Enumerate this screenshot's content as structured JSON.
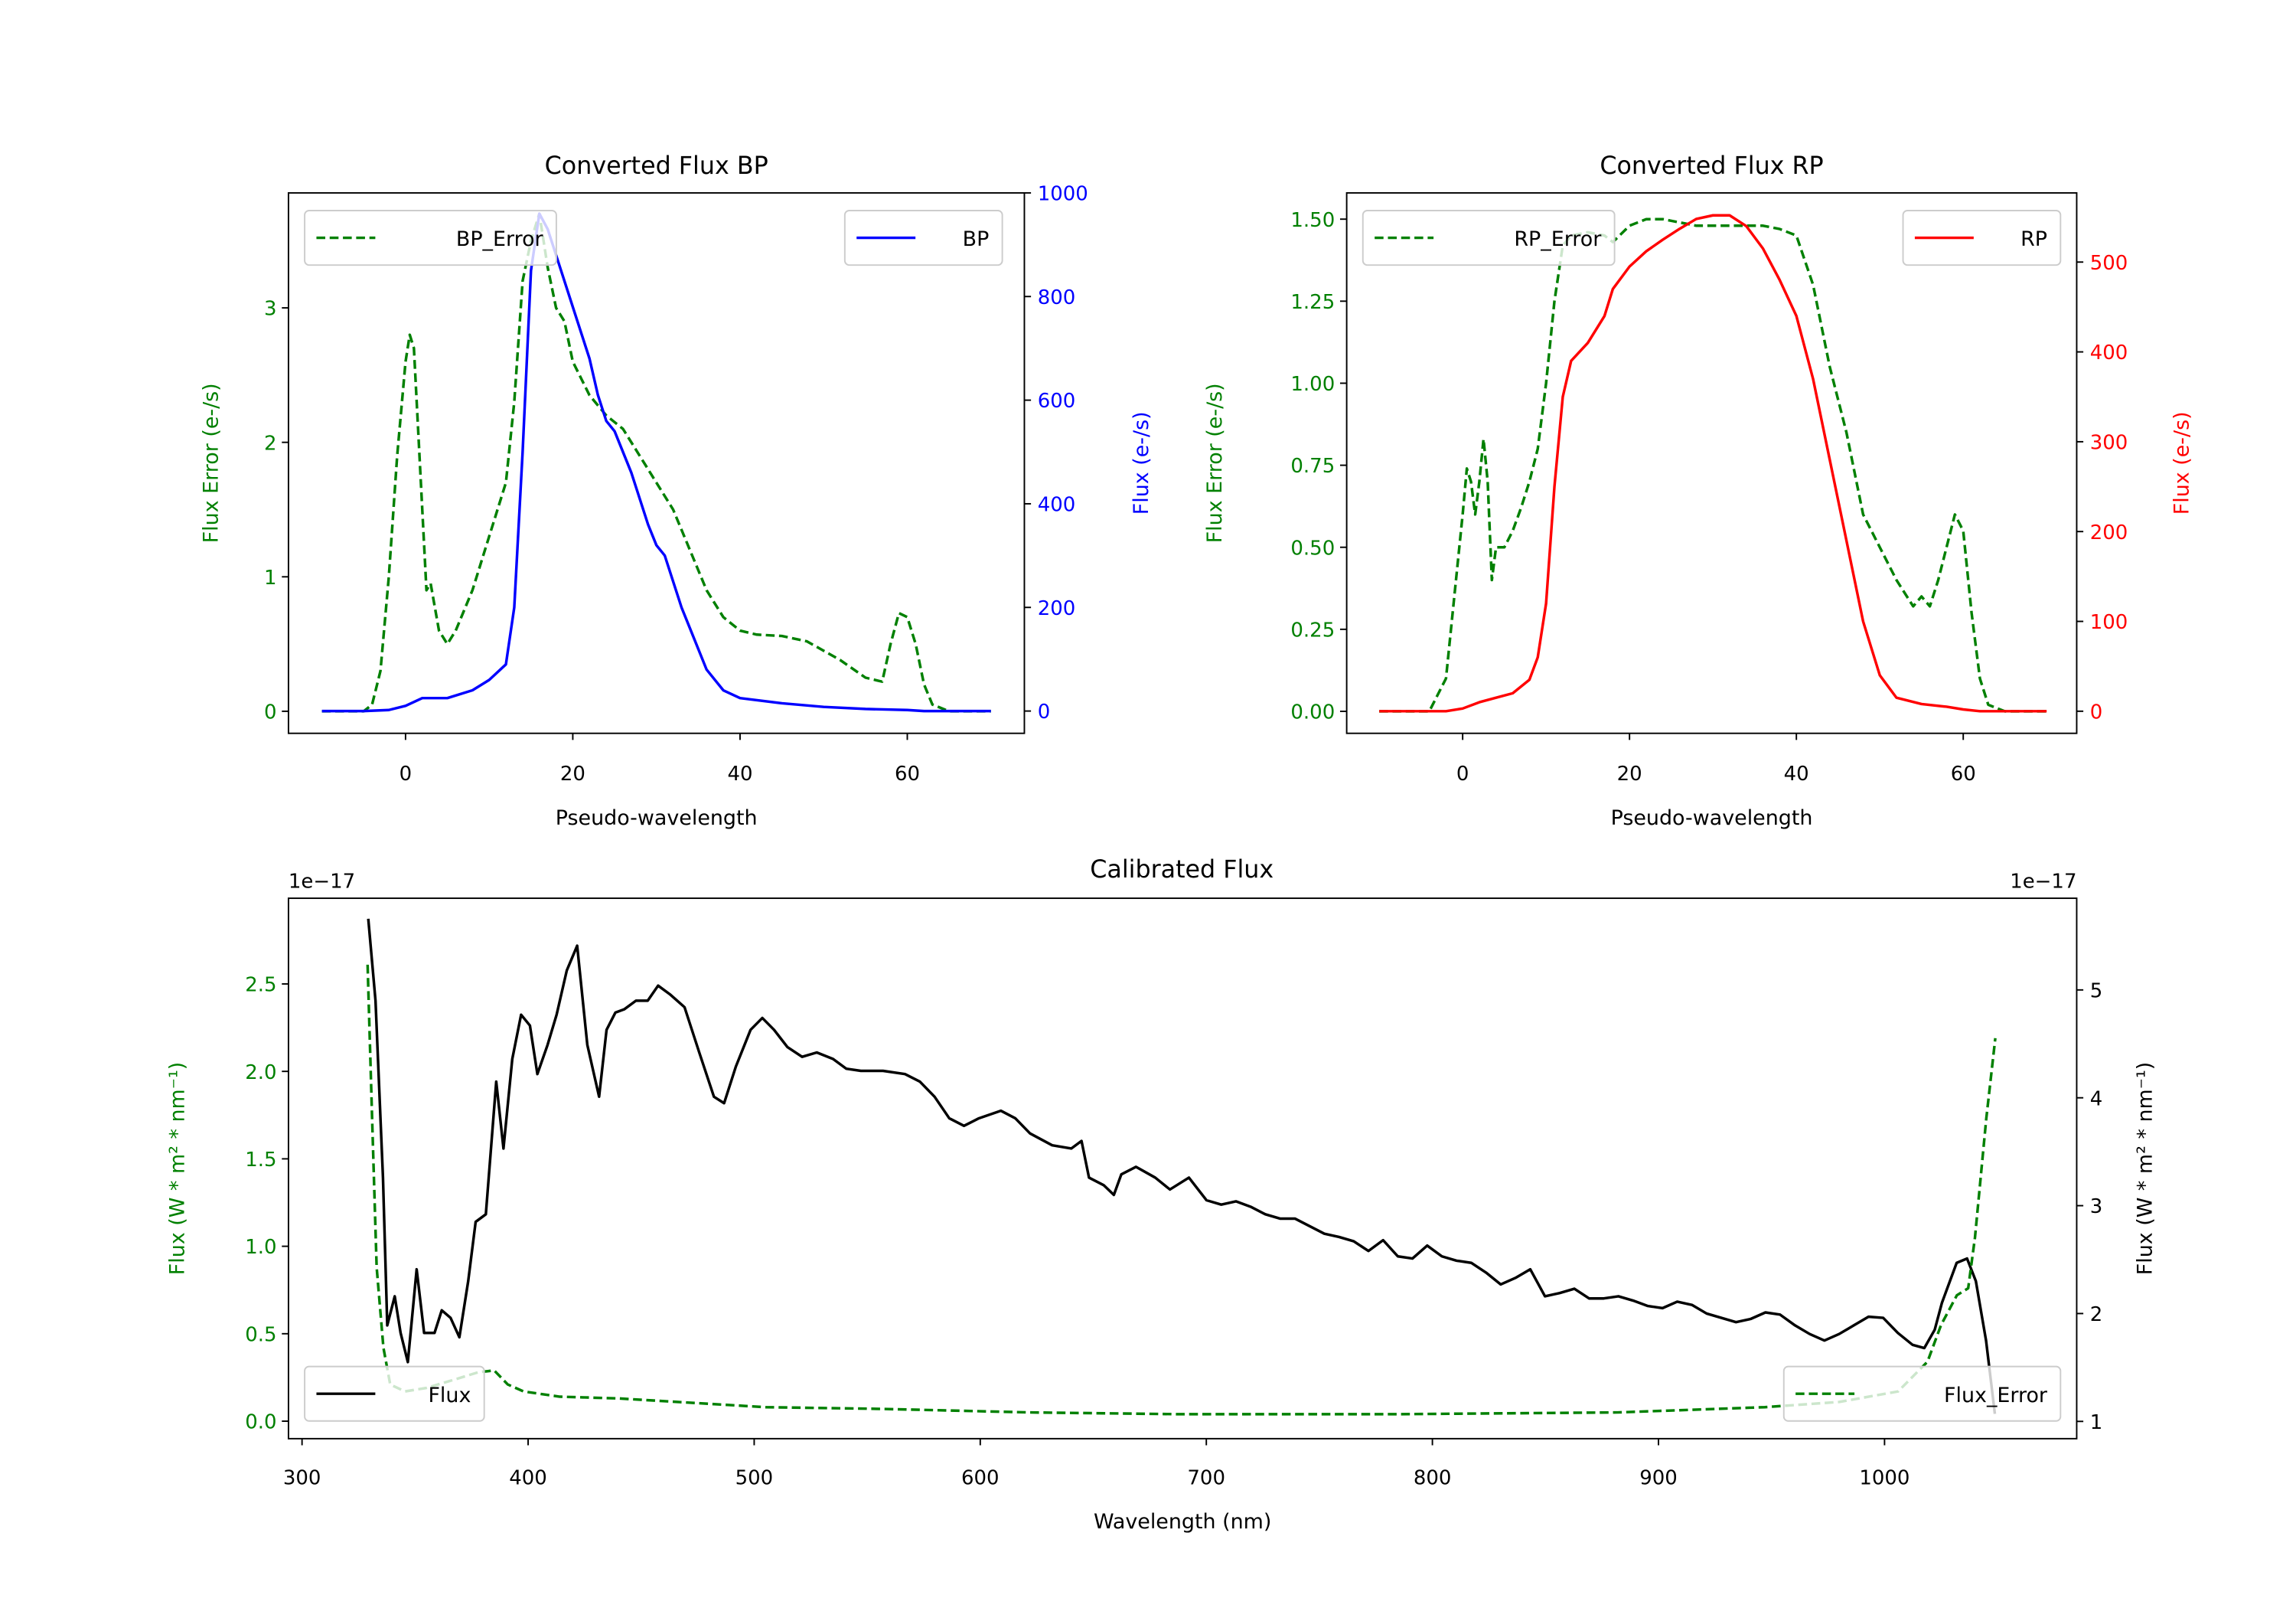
{
  "chart_data": [
    {
      "type": "line",
      "title": "Converted Flux BP",
      "xlabel": "Pseudo-wavelength",
      "ylabel_left": "Flux Error (e-/s)",
      "ylabel_right": "Flux (e-/s)",
      "xlim": [
        -14,
        74
      ],
      "ylim_left": [
        -0.164,
        3.855
      ],
      "ylim_right": [
        -43,
        1000
      ],
      "xticks": [
        0,
        20,
        40,
        60
      ],
      "xtick_labels": [
        "0",
        "20",
        "40",
        "60"
      ],
      "yticks_left": [
        0,
        1,
        2,
        3
      ],
      "ytick_labels_left": [
        "0",
        "1",
        "2",
        "3"
      ],
      "yticks_right": [
        0,
        200,
        400,
        600,
        800,
        1000
      ],
      "ytick_labels_right": [
        "0",
        "200",
        "400",
        "600",
        "800",
        "1000"
      ],
      "left_color": "#008000",
      "right_color": "#0000ff",
      "series": [
        {
          "name": "BP_Error",
          "axis": "left",
          "style": "dashed",
          "color": "#008000",
          "legend": "upper-left",
          "x": [
            -10,
            -5,
            -4,
            -3,
            -2,
            -1,
            0,
            0.5,
            1,
            2,
            2.5,
            3,
            4,
            5,
            6,
            8,
            10,
            12,
            13,
            14,
            15,
            16,
            17,
            18,
            19,
            20,
            22,
            24,
            26,
            28,
            30,
            32,
            34,
            36,
            38,
            40,
            42,
            45,
            48,
            50,
            52,
            55,
            57,
            58,
            59,
            60,
            61,
            62,
            63,
            65,
            70
          ],
          "y": [
            0,
            0,
            0.05,
            0.3,
            1.0,
            1.9,
            2.6,
            2.8,
            2.7,
            1.5,
            0.9,
            0.95,
            0.6,
            0.5,
            0.6,
            0.9,
            1.3,
            1.7,
            2.3,
            3.2,
            3.5,
            3.7,
            3.3,
            3.0,
            2.9,
            2.6,
            2.35,
            2.2,
            2.1,
            1.9,
            1.7,
            1.5,
            1.2,
            0.9,
            0.7,
            0.6,
            0.57,
            0.56,
            0.52,
            0.45,
            0.38,
            0.25,
            0.22,
            0.5,
            0.73,
            0.7,
            0.5,
            0.2,
            0.05,
            0,
            0
          ]
        },
        {
          "name": "BP",
          "axis": "right",
          "style": "solid",
          "color": "#0000ff",
          "legend": "upper-right",
          "x": [
            -10,
            -5,
            -2,
            0,
            2,
            5,
            8,
            10,
            12,
            13,
            14,
            15,
            16,
            17,
            18,
            20,
            22,
            23,
            24,
            25,
            27,
            29,
            30,
            31,
            33,
            34,
            36,
            38,
            40,
            45,
            50,
            55,
            60,
            62,
            70
          ],
          "y": [
            0,
            0,
            2,
            10,
            25,
            25,
            40,
            60,
            90,
            200,
            500,
            850,
            960,
            930,
            880,
            780,
            680,
            610,
            560,
            540,
            460,
            360,
            320,
            300,
            200,
            160,
            80,
            40,
            25,
            15,
            8,
            4,
            2,
            0,
            0
          ]
        }
      ]
    },
    {
      "type": "line",
      "title": "Converted Flux RP",
      "xlabel": "Pseudo-wavelength",
      "ylabel_left": "Flux Error (e-/s)",
      "ylabel_right": "Flux (e-/s)",
      "xlim": [
        -13.9,
        73.6
      ],
      "ylim_left": [
        -0.067,
        1.58
      ],
      "ylim_right": [
        -24.6,
        577
      ],
      "xticks": [
        0,
        20,
        40,
        60
      ],
      "xtick_labels": [
        "0",
        "20",
        "40",
        "60"
      ],
      "yticks_left": [
        0,
        0.25,
        0.5,
        0.75,
        1.0,
        1.25,
        1.5
      ],
      "ytick_labels_left": [
        "0.00",
        "0.25",
        "0.50",
        "0.75",
        "1.00",
        "1.25",
        "1.50"
      ],
      "yticks_right": [
        0,
        100,
        200,
        300,
        400,
        500
      ],
      "ytick_labels_right": [
        "0",
        "100",
        "200",
        "300",
        "400",
        "500"
      ],
      "left_color": "#008000",
      "right_color": "#ff0000",
      "series": [
        {
          "name": "RP_Error",
          "axis": "left",
          "style": "dashed",
          "color": "#008000",
          "legend": "upper-left",
          "x": [
            -10,
            -4,
            -2,
            -1,
            0,
            0.5,
            1,
            1.5,
            2,
            2.5,
            3,
            3.5,
            4,
            5,
            6,
            7,
            8,
            9,
            10,
            11,
            12,
            13,
            15,
            17,
            18,
            20,
            22,
            24,
            26,
            28,
            30,
            32,
            34,
            36,
            38,
            40,
            42,
            44,
            46,
            48,
            50,
            52,
            54,
            55,
            56,
            57,
            58,
            59,
            60,
            61,
            62,
            63,
            65,
            70
          ],
          "y": [
            0,
            0,
            0.1,
            0.35,
            0.6,
            0.74,
            0.7,
            0.6,
            0.7,
            0.83,
            0.7,
            0.4,
            0.5,
            0.5,
            0.55,
            0.62,
            0.7,
            0.8,
            1.0,
            1.25,
            1.42,
            1.45,
            1.46,
            1.45,
            1.43,
            1.48,
            1.5,
            1.5,
            1.49,
            1.48,
            1.48,
            1.48,
            1.48,
            1.48,
            1.47,
            1.45,
            1.3,
            1.05,
            0.85,
            0.6,
            0.5,
            0.4,
            0.32,
            0.35,
            0.32,
            0.4,
            0.5,
            0.6,
            0.55,
            0.3,
            0.1,
            0.02,
            0,
            0
          ]
        },
        {
          "name": "RP",
          "axis": "right",
          "style": "solid",
          "color": "#ff0000",
          "legend": "upper-right",
          "x": [
            -10,
            -2,
            0,
            2,
            4,
            6,
            8,
            9,
            10,
            11,
            12,
            13,
            15,
            17,
            18,
            20,
            22,
            24,
            26,
            28,
            30,
            32,
            34,
            36,
            38,
            40,
            42,
            44,
            46,
            48,
            50,
            52,
            55,
            58,
            60,
            62,
            70
          ],
          "y": [
            0,
            0,
            3,
            10,
            15,
            20,
            35,
            60,
            120,
            250,
            350,
            390,
            410,
            440,
            470,
            495,
            512,
            525,
            537,
            548,
            552,
            552,
            540,
            515,
            480,
            440,
            370,
            280,
            190,
            100,
            40,
            15,
            8,
            5,
            2,
            0,
            0
          ]
        }
      ]
    },
    {
      "type": "line",
      "title": "Calibrated Flux",
      "xlabel": "Wavelength (nm)",
      "ylabel_left": "Flux (W * m² * nm⁻¹)",
      "ylabel_right": "Flux (W * m² * nm⁻¹)",
      "offset_left": "1e−17",
      "offset_right": "1e−17",
      "xlim": [
        294,
        1085
      ],
      "ylim_left": [
        -0.1,
        2.99
      ],
      "ylim_right": [
        0.84,
        5.85
      ],
      "xticks": [
        300,
        400,
        500,
        600,
        700,
        800,
        900,
        1000
      ],
      "xtick_labels": [
        "300",
        "400",
        "500",
        "600",
        "700",
        "800",
        "900",
        "1000"
      ],
      "yticks_left": [
        0,
        0.5,
        1.0,
        1.5,
        2.0,
        2.5
      ],
      "ytick_labels_left": [
        "0.0",
        "0.5",
        "1.0",
        "1.5",
        "2.0",
        "2.5"
      ],
      "yticks_right": [
        1,
        2,
        3,
        4,
        5
      ],
      "ytick_labels_right": [
        "1",
        "2",
        "3",
        "4",
        "5"
      ],
      "left_color": "#008000",
      "right_color": "#000000",
      "series": [
        {
          "name": "Flux",
          "axis": "right",
          "style": "solid",
          "color": "#000000",
          "legend": "lower-left",
          "x": [
            329.3,
            332.5,
            335.8,
            337.7,
            341,
            343.6,
            346.8,
            350.7,
            354,
            358.6,
            361.8,
            365.7,
            369.6,
            373.5,
            376.8,
            381.3,
            385.9,
            389.1,
            393,
            396.9,
            400.8,
            404.1,
            408.6,
            412.6,
            417.1,
            421.7,
            426.2,
            431.4,
            434.7,
            438.6,
            442.5,
            447.7,
            452.9,
            457.5,
            462.7,
            469.2,
            475.7,
            482.2,
            486.7,
            491.9,
            498.4,
            503.6,
            508.8,
            514.7,
            521.2,
            527.7,
            534.9,
            540.7,
            547.2,
            557,
            566.7,
            573.3,
            579.8,
            586.3,
            592.8,
            599.4,
            609.1,
            615.5,
            622,
            631.8,
            640.3,
            644.8,
            648.1,
            654.6,
            659.1,
            662.4,
            668.9,
            677.4,
            683.9,
            692.3,
            700.1,
            706.6,
            713.1,
            719.6,
            726.1,
            732.6,
            739.2,
            745.7,
            752.2,
            758.7,
            765.2,
            771.7,
            778.2,
            784.7,
            791.2,
            797.7,
            804.2,
            810.7,
            817.2,
            823.7,
            830.2,
            836.7,
            843.3,
            849.8,
            856.3,
            862.8,
            869.3,
            875.8,
            882.3,
            888.8,
            895.3,
            901.8,
            908.3,
            914.8,
            921.3,
            927.8,
            934.3,
            940.8,
            947.3,
            953.8,
            960.4,
            966.9,
            973.4,
            979.9,
            986.4,
            992.9,
            999.4,
            1005.9,
            1012.4,
            1017.6,
            1022.2,
            1025.4,
            1031.9,
            1036.5,
            1040.4,
            1044.9,
            1048.8
          ],
          "y": [
            5.66,
            4.9,
            3.26,
            1.89,
            2.16,
            1.82,
            1.55,
            2.41,
            1.82,
            1.82,
            2.03,
            1.96,
            1.78,
            2.3,
            2.85,
            2.92,
            4.15,
            3.53,
            4.36,
            4.77,
            4.67,
            4.22,
            4.49,
            4.77,
            5.18,
            5.41,
            4.49,
            4.01,
            4.63,
            4.79,
            4.82,
            4.9,
            4.9,
            5.04,
            4.96,
            4.84,
            4.42,
            4.01,
            3.95,
            4.29,
            4.63,
            4.74,
            4.63,
            4.47,
            4.38,
            4.42,
            4.36,
            4.27,
            4.25,
            4.25,
            4.22,
            4.15,
            4.01,
            3.81,
            3.74,
            3.81,
            3.88,
            3.81,
            3.67,
            3.56,
            3.53,
            3.6,
            3.26,
            3.19,
            3.1,
            3.29,
            3.36,
            3.26,
            3.15,
            3.26,
            3.05,
            3.01,
            3.04,
            2.99,
            2.92,
            2.88,
            2.88,
            2.81,
            2.74,
            2.71,
            2.67,
            2.58,
            2.68,
            2.53,
            2.51,
            2.63,
            2.53,
            2.49,
            2.47,
            2.38,
            2.27,
            2.33,
            2.41,
            2.16,
            2.19,
            2.23,
            2.14,
            2.14,
            2.16,
            2.12,
            2.07,
            2.05,
            2.11,
            2.08,
            2.0,
            1.96,
            1.92,
            1.95,
            2.01,
            1.99,
            1.89,
            1.81,
            1.75,
            1.81,
            1.89,
            1.97,
            1.96,
            1.82,
            1.71,
            1.68,
            1.85,
            2.1,
            2.47,
            2.51,
            2.3,
            1.75,
            1.07
          ]
        },
        {
          "name": "Flux_Error",
          "axis": "left",
          "style": "dashed",
          "color": "#008000",
          "legend": "lower-right",
          "x": [
            329,
            331,
            333,
            336,
            339,
            345.5,
            355,
            368,
            378,
            385,
            391,
            398,
            414,
            440,
            466,
            505,
            557,
            622,
            687,
            785,
            882,
            947,
            980,
            1006,
            1019,
            1025,
            1032,
            1037,
            1040,
            1045,
            1049
          ],
          "y": [
            2.61,
            1.73,
            0.88,
            0.42,
            0.21,
            0.17,
            0.19,
            0.24,
            0.28,
            0.29,
            0.21,
            0.17,
            0.14,
            0.13,
            0.11,
            0.08,
            0.07,
            0.05,
            0.04,
            0.04,
            0.05,
            0.08,
            0.11,
            0.17,
            0.34,
            0.55,
            0.72,
            0.76,
            1.05,
            1.73,
            2.19
          ]
        }
      ]
    }
  ]
}
